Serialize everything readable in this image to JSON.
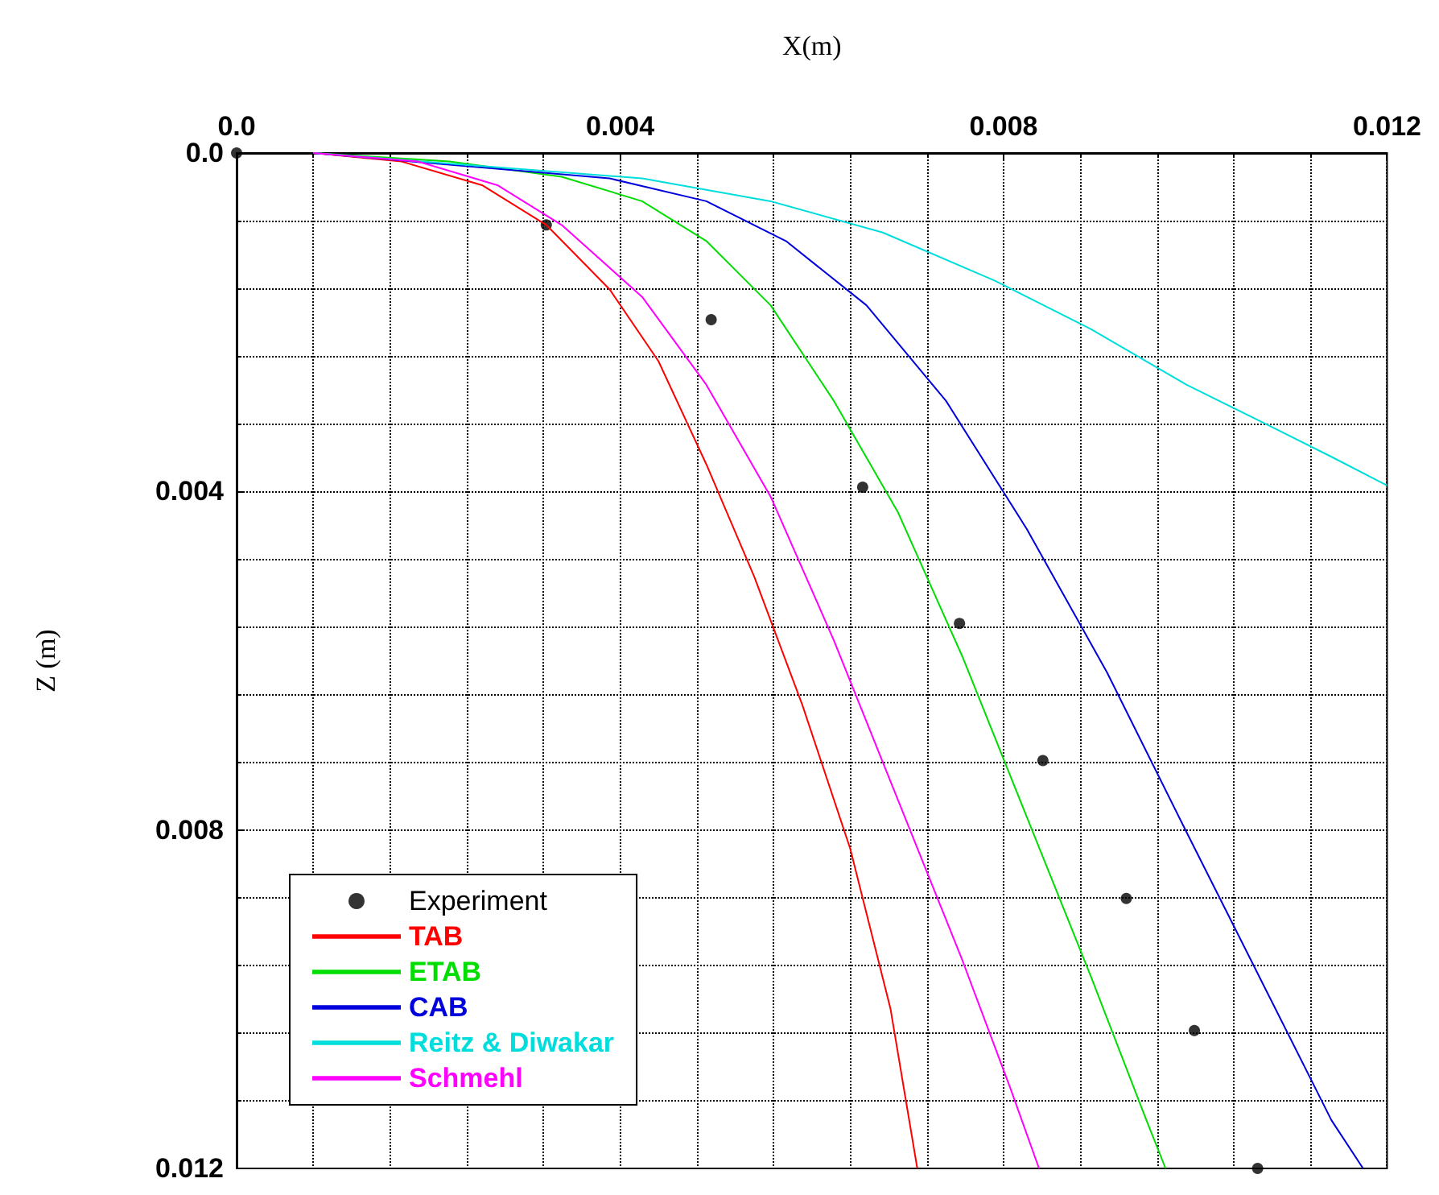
{
  "chart_data": {
    "type": "line",
    "xlabel": "X(m)",
    "ylabel": "Z (m)",
    "xlim": [
      0,
      0.012
    ],
    "xticks": [
      {
        "value": 0,
        "label": "0.0"
      },
      0.004,
      0.008,
      0.012
    ],
    "ylim": [
      0.012,
      0
    ],
    "yticks": [
      {
        "value": 0,
        "label": "0.0"
      },
      0.004,
      0.008,
      0.012
    ],
    "grid": true,
    "legend": "bottom left",
    "line_style": "solid",
    "series": [
      {
        "name": "Experiment",
        "type": "scatter",
        "marker": "circle",
        "color": "#000000",
        "x": [
          0,
          0.00323,
          0.00495,
          0.00653,
          0.00754,
          0.00841,
          0.00928,
          0.00999,
          0.01065
        ],
        "values": [
          0,
          0.00085,
          0.00197,
          0.00395,
          0.00556,
          0.00718,
          0.00881,
          0.01037,
          0.012
        ]
      },
      {
        "name": "TAB",
        "marker": "none",
        "color": "#ff0000",
        "x": [
          0.0008,
          0.00172,
          0.00256,
          0.00323,
          0.00389,
          0.0044,
          0.0049,
          0.0054,
          0.0059,
          0.0064,
          0.00682,
          0.0071
        ],
        "values": [
          0,
          0.0001,
          0.00038,
          0.00085,
          0.00161,
          0.00246,
          0.00368,
          0.00501,
          0.00652,
          0.00822,
          0.01011,
          0.012
        ]
      },
      {
        "name": "ETAB",
        "marker": "none",
        "color": "#00dd00",
        "x": [
          0.0008,
          0.00222,
          0.00339,
          0.00423,
          0.0049,
          0.00557,
          0.00623,
          0.0069,
          0.00757,
          0.00824,
          0.00891,
          0.00949,
          0.00969
        ],
        "values": [
          0,
          0.0001,
          0.00028,
          0.00057,
          0.00104,
          0.0018,
          0.00293,
          0.00425,
          0.00595,
          0.00784,
          0.00973,
          0.01143,
          0.012
        ]
      },
      {
        "name": "CAB",
        "marker": "none",
        "color": "#0000dd",
        "x": [
          0.0008,
          0.00389,
          0.0049,
          0.00573,
          0.00657,
          0.0074,
          0.00824,
          0.00908,
          0.00991,
          0.01075,
          0.01142,
          0.01175
        ],
        "values": [
          0,
          0.0003,
          0.00057,
          0.00104,
          0.0018,
          0.00293,
          0.00444,
          0.00614,
          0.00803,
          0.00992,
          0.01143,
          0.012
        ]
      },
      {
        "name": "Reitz & Diwakar",
        "marker": "none",
        "color": "#00dddd",
        "x": [
          0.0008,
          0.00423,
          0.00557,
          0.00674,
          0.00791,
          0.00891,
          0.00991,
          0.01075,
          0.01142,
          0.012
        ],
        "values": [
          0,
          0.0003,
          0.00057,
          0.00094,
          0.00151,
          0.00208,
          0.00274,
          0.00321,
          0.00359,
          0.00393
        ]
      },
      {
        "name": "Schmehl",
        "marker": "none",
        "color": "#ff00ff",
        "x": [
          0.0008,
          0.00189,
          0.00272,
          0.00339,
          0.00423,
          0.0049,
          0.00557,
          0.00623,
          0.0069,
          0.00757,
          0.00807,
          0.00837
        ],
        "values": [
          0,
          0.0001,
          0.00038,
          0.00085,
          0.0017,
          0.00274,
          0.00406,
          0.00576,
          0.00765,
          0.00954,
          0.01105,
          0.012
        ]
      }
    ]
  }
}
